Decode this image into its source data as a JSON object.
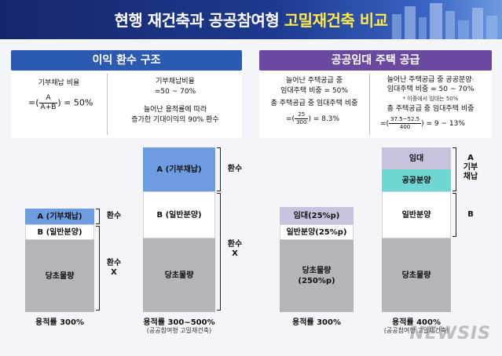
{
  "header": {
    "title_main": "현행 재건축과 공공참여형",
    "title_highlight": "고밀재건축 비교"
  },
  "left_panel": {
    "banner": "이익 환수 구조",
    "col1": {
      "label": "기부채납 비율",
      "formula_prefix": "=(",
      "formula_num": "A",
      "formula_den": "A+B",
      "formula_suffix": ") = 50%"
    },
    "col2": {
      "line1": "기부채납비율",
      "line2": "=50 ~ 70%",
      "line3": "늘어난 용적률에 따라",
      "line4": "증가한 기대이익의 90% 환수"
    }
  },
  "right_panel": {
    "banner": "공공임대 주택 공급",
    "col1": {
      "line1": "늘어난 주택공급 중",
      "line2": "임대주택 비중 = 50%",
      "line3": "총 주택공급 중 임대주택 비중",
      "formula_prefix": "=(",
      "formula_num": "25",
      "formula_den": "300",
      "formula_suffix": ") = 8.3%"
    },
    "col2": {
      "line1": "늘어난 주택공급 중 공공분양·",
      "line2": "임대주택 비중 = 50 ~ 70%",
      "line3": "* 이중에서 임대는 50%",
      "line4": "총 주택공급 중 임대주택 비중",
      "formula_prefix": "=(",
      "formula_num": "37.5~52.5",
      "formula_den": "400",
      "formula_suffix": ") = 9 ~ 13%"
    }
  },
  "diagrams": {
    "d1": {
      "top": "A (기부채납)",
      "mid": "B (일반분양)",
      "base": "당초물량",
      "side_top": "환수",
      "side_bottom": "환수\nX",
      "caption": "용적률 300%"
    },
    "d2": {
      "top": "A (기부채납)",
      "mid": "B (일반분양)",
      "base": "당초물량",
      "side_top": "환수",
      "side_bottom": "환수\nX",
      "caption": "용적률 300~500%",
      "subcaption": "(공공참여형 고밀재건축)"
    },
    "d3": {
      "top": "임대(25%p)",
      "mid": "일반분양(25%p)",
      "base": "당초물량\n(250%p)",
      "caption": "용적률 300%"
    },
    "d4": {
      "top": "임대",
      "mid1": "공공분양",
      "mid2": "일반분양",
      "base": "당초물량",
      "side_a": "A\n기부\n채납",
      "side_b": "B",
      "caption": "용적률 400%",
      "subcaption": "(공공참여형 고밀재건축)"
    }
  },
  "watermark": "NEWSIS"
}
